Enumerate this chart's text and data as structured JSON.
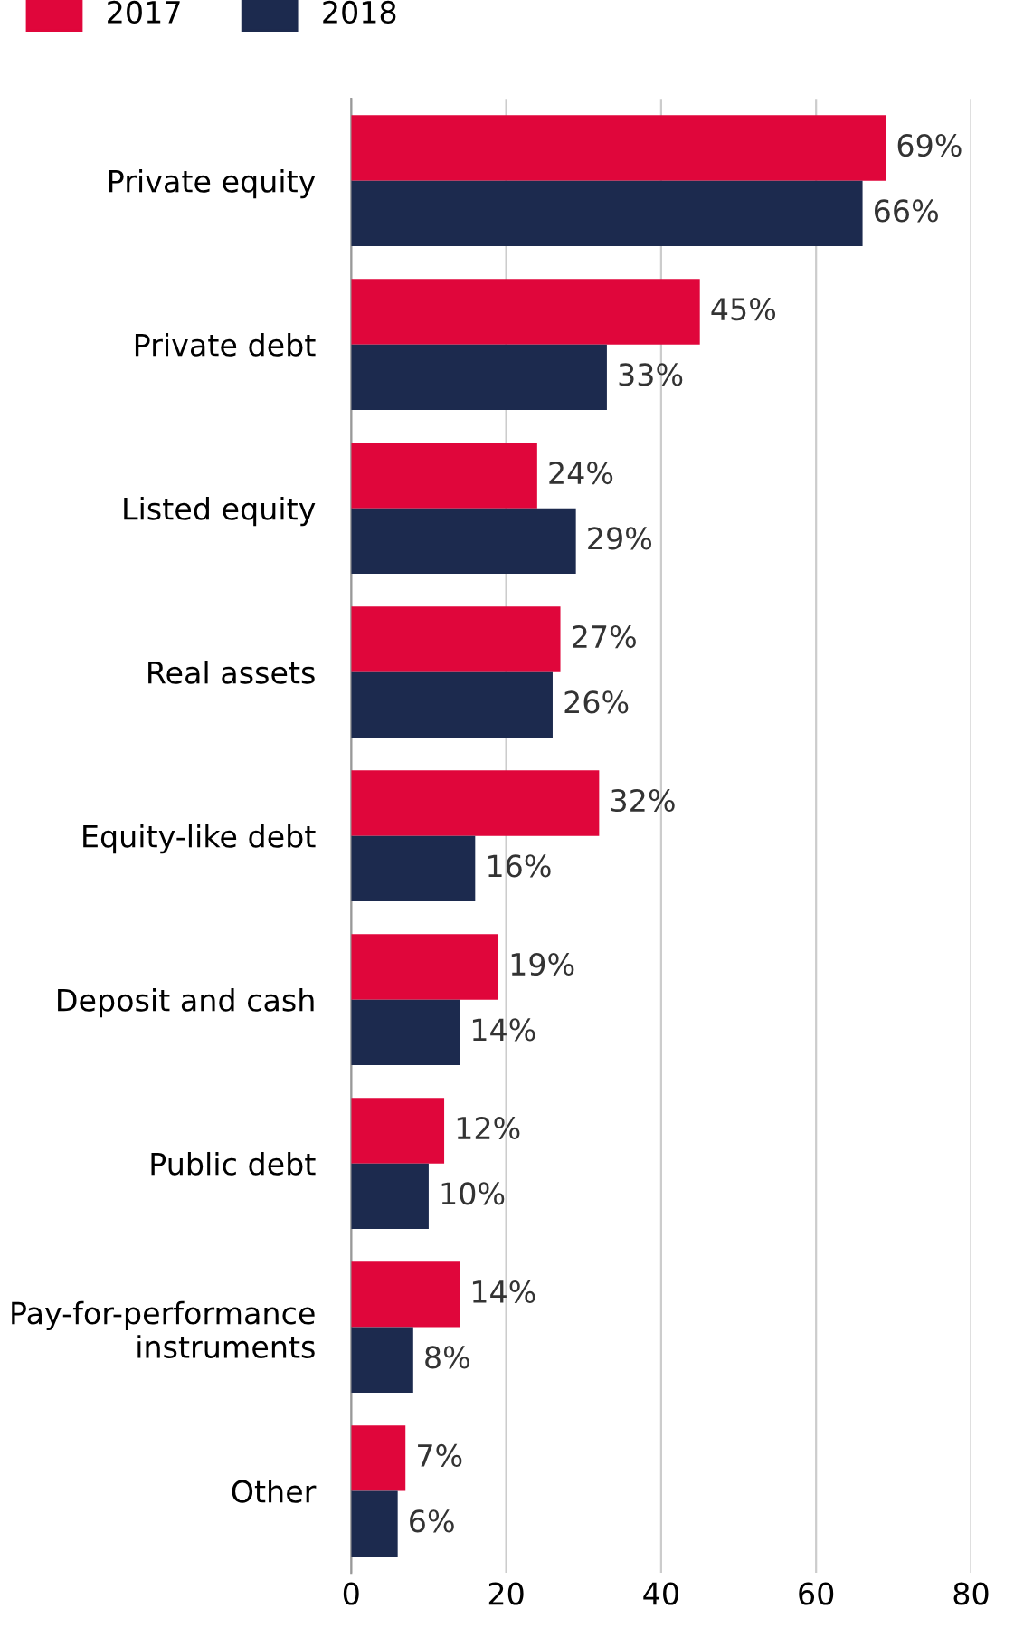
{
  "chart_data": {
    "type": "bar",
    "orientation": "horizontal",
    "categories": [
      "Private equity",
      "Private debt",
      "Listed equity",
      "Real assets",
      "Equity-like debt",
      "Deposit and cash",
      "Public debt",
      "Pay-for-performance\ninstruments",
      "Other"
    ],
    "series": [
      {
        "name": "2017",
        "color": "#e0063b",
        "values": [
          69,
          45,
          24,
          27,
          32,
          19,
          12,
          14,
          7
        ],
        "value_labels": [
          "69%",
          "45%",
          "24%",
          "27%",
          "32%",
          "19%",
          "12%",
          "14%",
          "7%"
        ]
      },
      {
        "name": "2018",
        "color": "#1c2a4e",
        "values": [
          66,
          33,
          29,
          26,
          16,
          14,
          10,
          8,
          6
        ],
        "value_labels": [
          "66%",
          "33%",
          "29%",
          "26%",
          "16%",
          "14%",
          "10%",
          "8%",
          "6%"
        ]
      }
    ],
    "xlim": [
      0,
      80
    ],
    "xticks": [
      0,
      20,
      40,
      60,
      80
    ],
    "grid": "x",
    "legend": "top left"
  }
}
